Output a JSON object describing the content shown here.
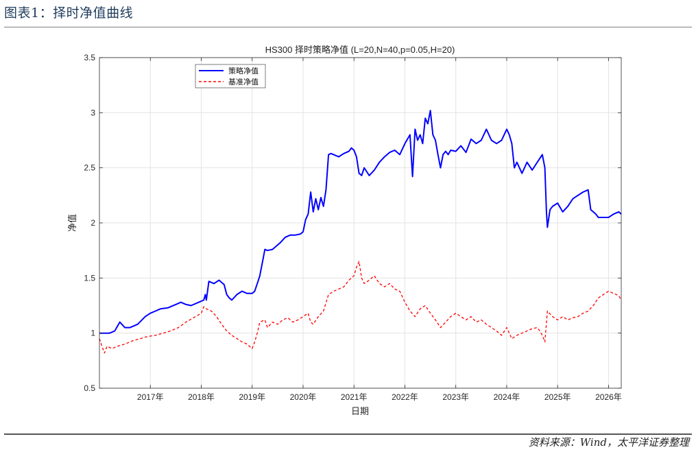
{
  "header": {
    "figure_title": "图表1：择时净值曲线"
  },
  "footer": {
    "source": "资料来源：Wind，太平洋证券整理"
  },
  "chart_data": {
    "type": "line",
    "title": "HS300 择时策略净值 (L=20,N=40,p=0.05,H=20)",
    "xlabel": "日期",
    "ylabel": "净值",
    "xlim": [
      2016.0,
      2026.25
    ],
    "ylim": [
      0.5,
      3.5
    ],
    "yticks": [
      0.5,
      1,
      1.5,
      2,
      2.5,
      3,
      3.5
    ],
    "ytick_labels": [
      "0.5",
      "1",
      "1.5",
      "2",
      "2.5",
      "3",
      "3.5"
    ],
    "xticks": [
      2017,
      2018,
      2019,
      2020,
      2021,
      2022,
      2023,
      2024,
      2025,
      2026
    ],
    "xtick_labels": [
      "2017年",
      "2018年",
      "2019年",
      "2020年",
      "2021年",
      "2022年",
      "2023年",
      "2024年",
      "2025年",
      "2026年"
    ],
    "grid": true,
    "legend_position": "top-left",
    "series": [
      {
        "name": "策略净值",
        "color": "#0000ff",
        "style": "solid",
        "x": [
          2016.0,
          2016.2,
          2016.3,
          2016.4,
          2016.5,
          2016.6,
          2016.75,
          2016.9,
          2017.0,
          2017.1,
          2017.2,
          2017.35,
          2017.5,
          2017.6,
          2017.7,
          2017.8,
          2017.95,
          2018.05,
          2018.08,
          2018.1,
          2018.15,
          2018.25,
          2018.35,
          2018.45,
          2018.5,
          2018.55,
          2018.6,
          2018.7,
          2018.8,
          2018.9,
          2019.0,
          2019.05,
          2019.1,
          2019.15,
          2019.25,
          2019.3,
          2019.4,
          2019.5,
          2019.55,
          2019.65,
          2019.75,
          2019.85,
          2019.95,
          2020.0,
          2020.05,
          2020.1,
          2020.15,
          2020.2,
          2020.25,
          2020.3,
          2020.35,
          2020.4,
          2020.45,
          2020.5,
          2020.55,
          2020.6,
          2020.7,
          2020.8,
          2020.9,
          2020.95,
          2021.0,
          2021.05,
          2021.1,
          2021.15,
          2021.2,
          2021.3,
          2021.4,
          2021.5,
          2021.6,
          2021.7,
          2021.8,
          2021.9,
          2022.0,
          2022.1,
          2022.15,
          2022.2,
          2022.25,
          2022.3,
          2022.35,
          2022.4,
          2022.45,
          2022.5,
          2022.55,
          2022.6,
          2022.65,
          2022.7,
          2022.75,
          2022.8,
          2022.85,
          2022.9,
          2023.0,
          2023.1,
          2023.2,
          2023.3,
          2023.4,
          2023.5,
          2023.6,
          2023.7,
          2023.8,
          2023.9,
          2024.0,
          2024.05,
          2024.1,
          2024.15,
          2024.2,
          2024.3,
          2024.4,
          2024.5,
          2024.6,
          2024.7,
          2024.75,
          2024.78,
          2024.8,
          2024.85,
          2024.9,
          2025.0,
          2025.1,
          2025.2,
          2025.3,
          2025.4,
          2025.5,
          2025.6,
          2025.65,
          2025.7,
          2025.75,
          2025.8,
          2025.9,
          2026.0,
          2026.1,
          2026.2,
          2026.25
        ],
        "values": [
          1.0,
          1.0,
          1.02,
          1.1,
          1.05,
          1.05,
          1.08,
          1.15,
          1.18,
          1.2,
          1.22,
          1.23,
          1.26,
          1.28,
          1.26,
          1.25,
          1.28,
          1.3,
          1.35,
          1.3,
          1.47,
          1.45,
          1.48,
          1.44,
          1.35,
          1.32,
          1.3,
          1.35,
          1.38,
          1.36,
          1.36,
          1.38,
          1.45,
          1.52,
          1.76,
          1.75,
          1.76,
          1.8,
          1.82,
          1.87,
          1.89,
          1.89,
          1.9,
          1.92,
          2.03,
          2.08,
          2.28,
          2.1,
          2.22,
          2.12,
          2.23,
          2.15,
          2.3,
          2.62,
          2.63,
          2.62,
          2.6,
          2.63,
          2.65,
          2.68,
          2.66,
          2.6,
          2.45,
          2.43,
          2.5,
          2.43,
          2.48,
          2.55,
          2.6,
          2.64,
          2.66,
          2.62,
          2.72,
          2.8,
          2.42,
          2.85,
          2.75,
          2.8,
          2.72,
          2.95,
          2.9,
          3.02,
          2.8,
          2.75,
          2.62,
          2.5,
          2.62,
          2.65,
          2.62,
          2.66,
          2.65,
          2.7,
          2.64,
          2.76,
          2.72,
          2.75,
          2.85,
          2.75,
          2.72,
          2.75,
          2.85,
          2.8,
          2.72,
          2.5,
          2.55,
          2.45,
          2.55,
          2.48,
          2.55,
          2.62,
          2.5,
          2.1,
          1.96,
          2.12,
          2.15,
          2.18,
          2.1,
          2.15,
          2.22,
          2.25,
          2.28,
          2.3,
          2.12,
          2.1,
          2.08,
          2.05,
          2.05,
          2.05,
          2.08,
          2.1,
          2.08
        ]
      },
      {
        "name": "基准净值",
        "color": "#ff0000",
        "style": "dashed",
        "x": [
          2016.0,
          2016.05,
          2016.1,
          2016.15,
          2016.25,
          2016.35,
          2016.5,
          2016.65,
          2016.8,
          2016.95,
          2017.1,
          2017.25,
          2017.4,
          2017.55,
          2017.7,
          2017.85,
          2018.0,
          2018.05,
          2018.1,
          2018.2,
          2018.3,
          2018.4,
          2018.5,
          2018.6,
          2018.7,
          2018.8,
          2018.9,
          2019.0,
          2019.05,
          2019.1,
          2019.15,
          2019.25,
          2019.3,
          2019.4,
          2019.5,
          2019.6,
          2019.7,
          2019.8,
          2019.9,
          2020.0,
          2020.1,
          2020.15,
          2020.2,
          2020.3,
          2020.4,
          2020.5,
          2020.6,
          2020.7,
          2020.8,
          2020.9,
          2021.0,
          2021.05,
          2021.1,
          2021.15,
          2021.2,
          2021.3,
          2021.4,
          2021.5,
          2021.6,
          2021.7,
          2021.8,
          2021.9,
          2022.0,
          2022.1,
          2022.2,
          2022.3,
          2022.4,
          2022.5,
          2022.6,
          2022.7,
          2022.8,
          2022.9,
          2023.0,
          2023.1,
          2023.2,
          2023.3,
          2023.4,
          2023.5,
          2023.6,
          2023.7,
          2023.8,
          2023.9,
          2024.0,
          2024.05,
          2024.1,
          2024.2,
          2024.3,
          2024.4,
          2024.5,
          2024.6,
          2024.65,
          2024.7,
          2024.75,
          2024.8,
          2024.9,
          2025.0,
          2025.1,
          2025.2,
          2025.3,
          2025.4,
          2025.5,
          2025.6,
          2025.7,
          2025.8,
          2025.9,
          2026.0,
          2026.1,
          2026.2,
          2026.25
        ],
        "values": [
          0.95,
          0.88,
          0.82,
          0.88,
          0.86,
          0.88,
          0.9,
          0.93,
          0.95,
          0.97,
          0.98,
          1.0,
          1.02,
          1.05,
          1.1,
          1.14,
          1.18,
          1.24,
          1.22,
          1.2,
          1.15,
          1.08,
          1.02,
          0.98,
          0.95,
          0.92,
          0.9,
          0.86,
          0.92,
          1.0,
          1.1,
          1.12,
          1.05,
          1.1,
          1.08,
          1.12,
          1.14,
          1.1,
          1.12,
          1.15,
          1.18,
          1.1,
          1.08,
          1.15,
          1.2,
          1.35,
          1.38,
          1.4,
          1.42,
          1.48,
          1.52,
          1.6,
          1.65,
          1.5,
          1.45,
          1.48,
          1.52,
          1.45,
          1.42,
          1.45,
          1.4,
          1.38,
          1.28,
          1.2,
          1.15,
          1.22,
          1.25,
          1.18,
          1.12,
          1.05,
          1.1,
          1.15,
          1.18,
          1.15,
          1.12,
          1.15,
          1.1,
          1.12,
          1.08,
          1.05,
          1.02,
          0.98,
          1.05,
          1.0,
          0.95,
          0.98,
          1.0,
          1.02,
          1.04,
          1.05,
          1.02,
          0.98,
          0.92,
          1.2,
          1.15,
          1.12,
          1.15,
          1.12,
          1.14,
          1.15,
          1.18,
          1.2,
          1.25,
          1.32,
          1.35,
          1.38,
          1.36,
          1.34,
          1.3
        ]
      }
    ]
  }
}
